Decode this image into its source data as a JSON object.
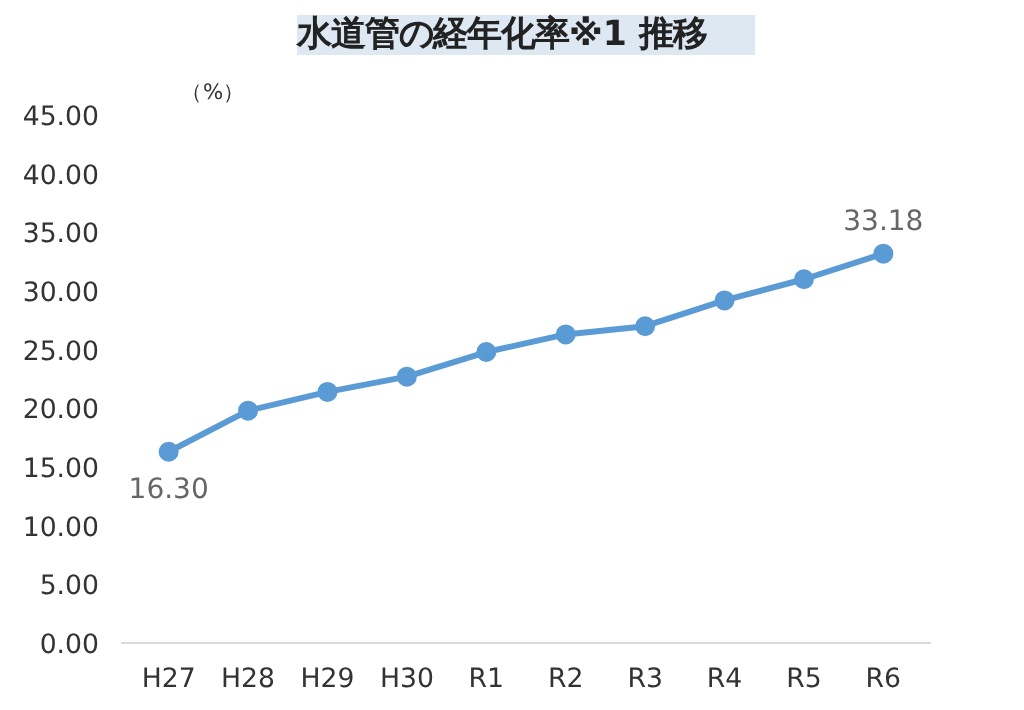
{
  "chart_data": {
    "type": "line",
    "title": "水道管の経年化率※1 推移",
    "ylabel": "（%）",
    "categories": [
      "H27",
      "H28",
      "H29",
      "H30",
      "R1",
      "R2",
      "R3",
      "R4",
      "R5",
      "R6"
    ],
    "series": [
      {
        "color": "#5b9bd5",
        "values": [
          16.3,
          19.8,
          21.4,
          22.7,
          24.8,
          26.3,
          27.0,
          29.2,
          31.0,
          33.18
        ],
        "value_labels": [
          "16.30",
          null,
          null,
          null,
          null,
          null,
          null,
          null,
          null,
          "33.18"
        ]
      }
    ],
    "ylim": [
      0,
      45
    ],
    "yticks": [
      {
        "value": 0,
        "label": "0.00"
      },
      {
        "value": 5,
        "label": "5.00"
      },
      {
        "value": 10,
        "label": "10.00"
      },
      {
        "value": 15,
        "label": "15.00"
      },
      {
        "value": 20,
        "label": "20.00"
      },
      {
        "value": 25,
        "label": "25.00"
      },
      {
        "value": 30,
        "label": "30.00"
      },
      {
        "value": 35,
        "label": "35.00"
      },
      {
        "value": 40,
        "label": "40.00"
      },
      {
        "value": 45,
        "label": "45.00"
      }
    ],
    "marker": "circle",
    "grid": false
  }
}
